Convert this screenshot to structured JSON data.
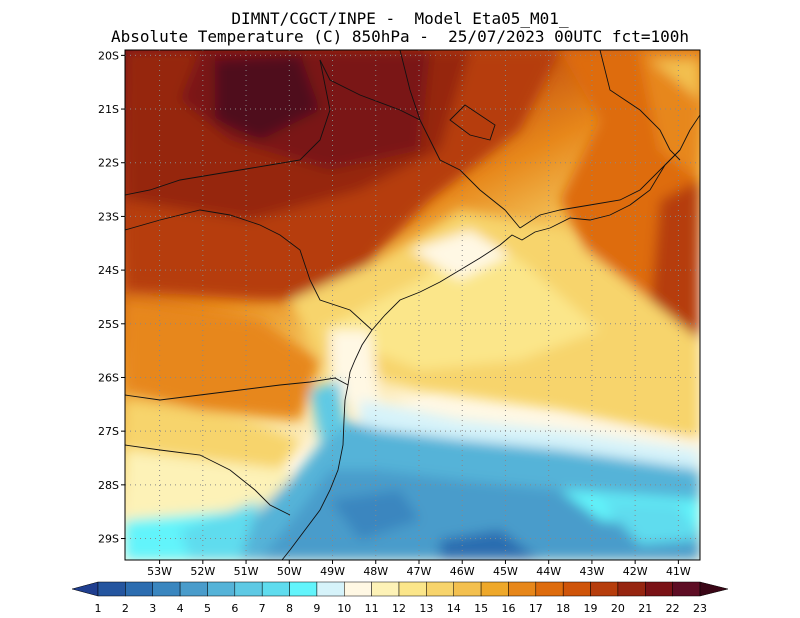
{
  "header": {
    "line1": "DIMNT/CGCT/INPE -  Model Eta05_M01_",
    "line2": "Absolute Temperature (C) 850hPa -  25/07/2023 00UTC fct=100h"
  },
  "map": {
    "lat_range": [
      -29.4,
      -19.9
    ],
    "lon_range": [
      -53.8,
      -40.5
    ],
    "lat_labels": [
      "20S",
      "21S",
      "22S",
      "23S",
      "24S",
      "25S",
      "26S",
      "27S",
      "28S",
      "29S"
    ],
    "lon_labels": [
      "53W",
      "52W",
      "51W",
      "50W",
      "49W",
      "48W",
      "47W",
      "46W",
      "45W",
      "44W",
      "43W",
      "42W",
      "41W"
    ]
  },
  "legend": {
    "labels": [
      "1",
      "2",
      "3",
      "4",
      "5",
      "6",
      "7",
      "8",
      "9",
      "10",
      "11",
      "12",
      "13",
      "14",
      "15",
      "16",
      "17",
      "18",
      "19",
      "20",
      "21",
      "22",
      "23"
    ],
    "colors": [
      "#1f3e8f",
      "#24559f",
      "#2c6db0",
      "#3a86bf",
      "#4a9ccb",
      "#55b3d8",
      "#5ec9e4",
      "#5fdcee",
      "#62f4fb",
      "#d6f3fa",
      "#fff8e4",
      "#fdf2b7",
      "#fbe68a",
      "#f7d46c",
      "#f3c04f",
      "#eea82a",
      "#e7871a",
      "#de6c0d",
      "#cf5409",
      "#b63d0c",
      "#962510",
      "#7a1216",
      "#5e0d24"
    ]
  }
}
